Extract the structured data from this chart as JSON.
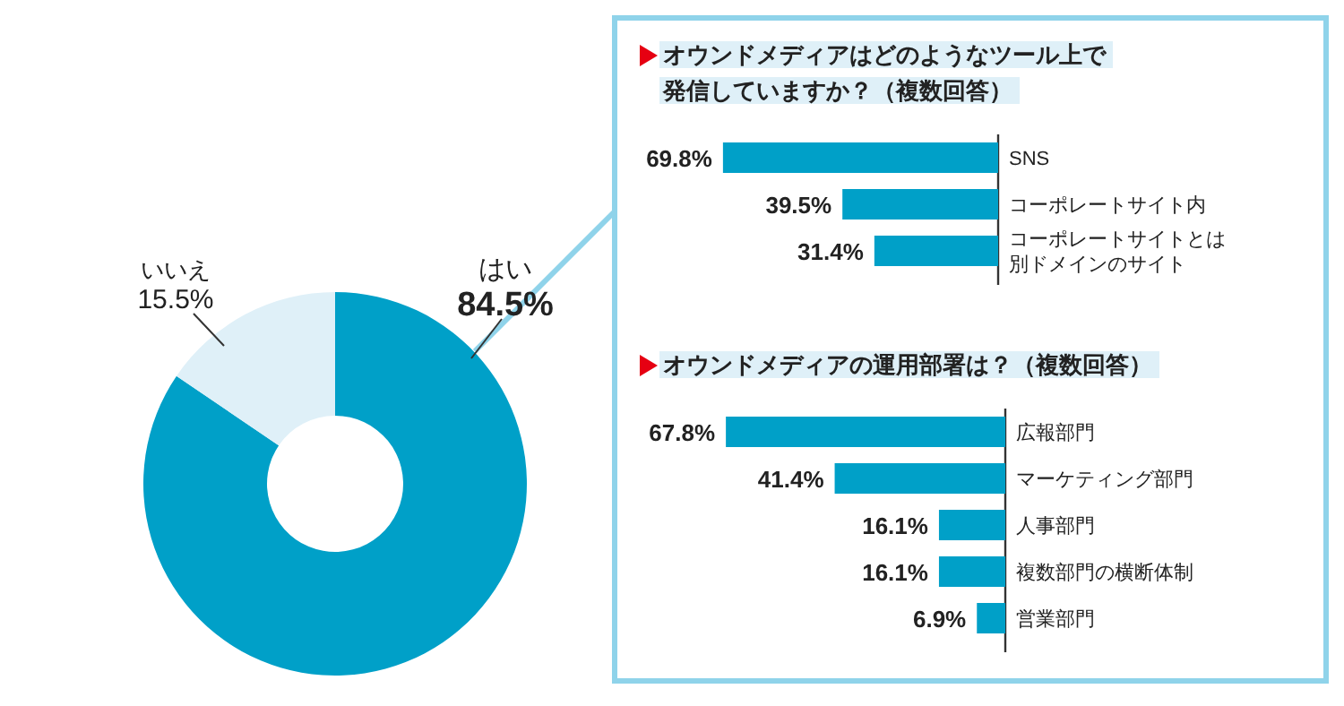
{
  "chart_data": [
    {
      "type": "donut",
      "categories": [
        "はい",
        "いいえ"
      ],
      "values": [
        84.5,
        15.5
      ],
      "colors": [
        "#00a0c8",
        "#dff0f8"
      ],
      "value_labels": [
        "84.5%",
        "15.5%"
      ]
    },
    {
      "type": "bar",
      "orientation": "horizontal",
      "title": "オウンドメディアはどのようなツール上で発信していますか？（複数回答）",
      "categories": [
        "SNS",
        "コーポレートサイト内",
        "コーポレートサイトとは別ドメインのサイト"
      ],
      "values": [
        69.8,
        39.5,
        31.4
      ],
      "color": "#00a0c8",
      "value_labels": [
        "69.8%",
        "39.5%",
        "31.4%"
      ]
    },
    {
      "type": "bar",
      "orientation": "horizontal",
      "title": "オウンドメディアの運用部署は？（複数回答）",
      "categories": [
        "広報部門",
        "マーケティング部門",
        "人事部門",
        "複数部門の横断体制",
        "営業部門"
      ],
      "values": [
        67.8,
        41.4,
        16.1,
        16.1,
        6.9
      ],
      "color": "#00a0c8",
      "value_labels": [
        "67.8%",
        "41.4%",
        "16.1%",
        "16.1%",
        "6.9%"
      ]
    }
  ]
}
